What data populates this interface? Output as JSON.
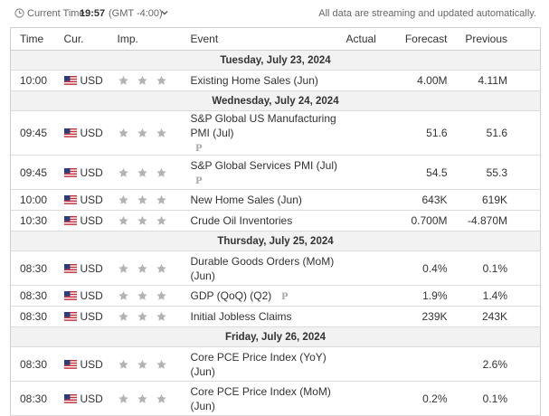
{
  "topbar": {
    "current_time_label": "Current Time:",
    "current_time_value": "19:57",
    "timezone": "(GMT -4:00)",
    "streaming_note": "All data are streaming and updated automatically.",
    "clock_icon": "clock-icon",
    "chevron_icon": "chevron-down-icon"
  },
  "columns": {
    "time": "Time",
    "currency": "Cur.",
    "importance": "Imp.",
    "event": "Event",
    "actual": "Actual",
    "forecast": "Forecast",
    "previous": "Previous"
  },
  "days": [
    {
      "date": "Tuesday, July 23, 2024",
      "events": [
        {
          "time": "10:00",
          "currency": "USD",
          "importance": 3,
          "event": "Existing Home Sales (Jun)",
          "preliminary": false,
          "actual": "",
          "forecast": "4.00M",
          "previous": "4.11M"
        }
      ]
    },
    {
      "date": "Wednesday, July 24, 2024",
      "events": [
        {
          "time": "09:45",
          "currency": "USD",
          "importance": 3,
          "event": "S&P Global US Manufacturing PMI (Jul)",
          "preliminary": true,
          "actual": "",
          "forecast": "51.6",
          "previous": "51.6"
        },
        {
          "time": "09:45",
          "currency": "USD",
          "importance": 3,
          "event": "S&P Global Services PMI (Jul)",
          "preliminary": true,
          "actual": "",
          "forecast": "54.5",
          "previous": "55.3"
        },
        {
          "time": "10:00",
          "currency": "USD",
          "importance": 3,
          "event": "New Home Sales (Jun)",
          "preliminary": false,
          "actual": "",
          "forecast": "643K",
          "previous": "619K"
        },
        {
          "time": "10:30",
          "currency": "USD",
          "importance": 3,
          "event": "Crude Oil Inventories",
          "preliminary": false,
          "actual": "",
          "forecast": "0.700M",
          "previous": "-4.870M"
        }
      ]
    },
    {
      "date": "Thursday, July 25, 2024",
      "events": [
        {
          "time": "08:30",
          "currency": "USD",
          "importance": 3,
          "event": "Durable Goods Orders (MoM) (Jun)",
          "preliminary": false,
          "actual": "",
          "forecast": "0.4%",
          "previous": "0.1%"
        },
        {
          "time": "08:30",
          "currency": "USD",
          "importance": 3,
          "event": "GDP (QoQ) (Q2)",
          "preliminary": true,
          "actual": "",
          "forecast": "1.9%",
          "previous": "1.4%"
        },
        {
          "time": "08:30",
          "currency": "USD",
          "importance": 3,
          "event": "Initial Jobless Claims",
          "preliminary": false,
          "actual": "",
          "forecast": "239K",
          "previous": "243K"
        }
      ]
    },
    {
      "date": "Friday, July 26, 2024",
      "events": [
        {
          "time": "08:30",
          "currency": "USD",
          "importance": 3,
          "event": "Core PCE Price Index (YoY) (Jun)",
          "preliminary": false,
          "actual": "",
          "forecast": "",
          "previous": "2.6%"
        },
        {
          "time": "08:30",
          "currency": "USD",
          "importance": 3,
          "event": "Core PCE Price Index (MoM) (Jun)",
          "preliminary": false,
          "actual": "",
          "forecast": "0.2%",
          "previous": "0.1%"
        }
      ]
    }
  ],
  "colors": {
    "star": "#b3b3b3",
    "preliminary_icon": "#aaaaaa",
    "day_header_bg": "#f2f2f2",
    "border": "#cfcfcf"
  }
}
